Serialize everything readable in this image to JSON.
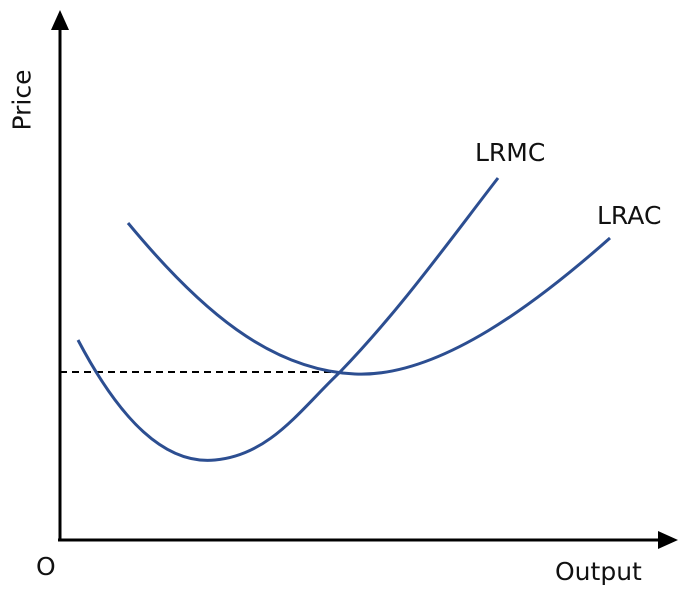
{
  "axes": {
    "y_label": "Price",
    "x_label": "Output",
    "origin_label": "O"
  },
  "curves": {
    "lrmc": {
      "label": "LRMC"
    },
    "lrac": {
      "label": "LRAC"
    }
  },
  "colors": {
    "curve": "#2c4e91",
    "axis": "#000000",
    "guide": "#000000"
  }
}
